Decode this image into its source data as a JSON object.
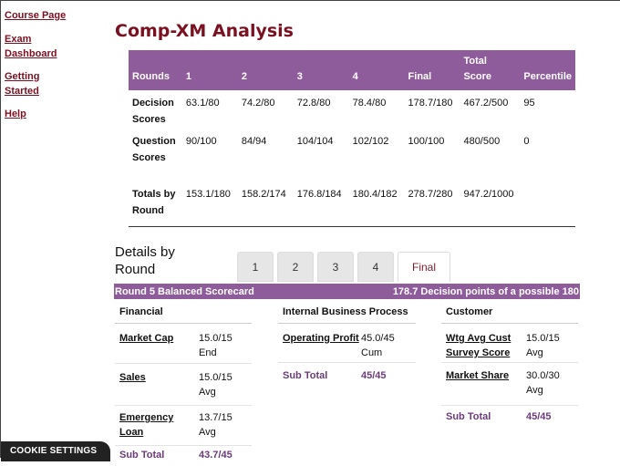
{
  "sidebar": {
    "items": [
      {
        "label": "Course Page"
      },
      {
        "label": "Exam Dashboard"
      },
      {
        "label": "Getting Started"
      },
      {
        "label": "Help"
      }
    ]
  },
  "page_title": "Comp-XM Analysis",
  "summary": {
    "headers": [
      "Rounds",
      "1",
      "2",
      "3",
      "4",
      "Final",
      "Total Score",
      "Percentile"
    ],
    "rows": [
      {
        "label": "Decision Scores",
        "cells": [
          "63.1/80",
          "74.2/80",
          "72.8/80",
          "78.4/80",
          "178.7/180",
          "467.2/500",
          "95"
        ]
      },
      {
        "label": "Question Scores",
        "cells": [
          "90/100",
          "84/94",
          "104/104",
          "102/102",
          "100/100",
          "480/500",
          "0"
        ]
      },
      {
        "label": "Totals by Round",
        "cells": [
          "153.1/180",
          "158.2/174",
          "176.8/184",
          "180.4/182",
          "278.7/280",
          "947.2/1000",
          ""
        ]
      }
    ]
  },
  "details": {
    "title": "Details by Round",
    "tabs": [
      {
        "label": "1"
      },
      {
        "label": "2"
      },
      {
        "label": "3"
      },
      {
        "label": "4"
      },
      {
        "label": "Final"
      }
    ],
    "active_tab": "Final"
  },
  "scorecard": {
    "title": "Round 5 Balanced Scorecard",
    "summary": "178.7 Decision points of a possible 180",
    "financial": {
      "heading": "Financial",
      "rows": [
        {
          "label": "Market Cap",
          "value": "15.0/15",
          "note": "End"
        },
        {
          "label": "Sales",
          "value": "15.0/15",
          "note": "Avg"
        },
        {
          "label": "Emergency Loan",
          "value": "13.7/15",
          "note": "Avg"
        },
        {
          "label": "Sub Total",
          "value": "43.7/45",
          "note": ""
        }
      ]
    },
    "internal": {
      "heading": "Internal Business Process",
      "rows": [
        {
          "label": "Operating Profit",
          "value": "45.0/45",
          "note": "Cum"
        },
        {
          "label": "Sub Total",
          "value": "45/45",
          "note": ""
        }
      ]
    },
    "customer": {
      "heading": "Customer",
      "rows": [
        {
          "label": "Wtg Avg Cust Survey Score",
          "value": "15.0/15",
          "note": "Avg"
        },
        {
          "label": "Market Share",
          "value": "30.0/30",
          "note": "Avg"
        },
        {
          "label": "Sub Total",
          "value": "45/45",
          "note": ""
        }
      ]
    }
  },
  "cookie_button": "COOKIE SETTINGS",
  "colors": {
    "accent": "#8e5c9b",
    "title": "#7a1020",
    "link": "#7a1020"
  }
}
